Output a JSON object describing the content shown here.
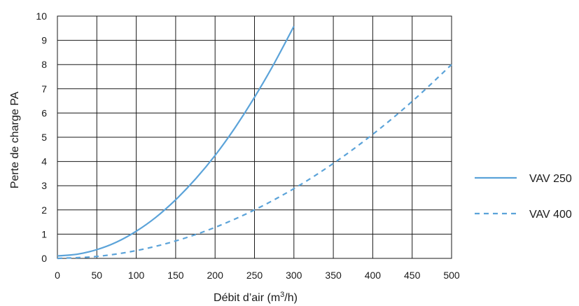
{
  "chart_data": {
    "type": "line",
    "xlabel_prefix": "Débit d’air (m",
    "xlabel_sup": "3",
    "xlabel_suffix": "/h)",
    "ylabel": "Perte de charge PA",
    "xlim": [
      0,
      500
    ],
    "ylim": [
      0,
      10
    ],
    "x_ticks": [
      "0",
      "50",
      "100",
      "150",
      "200",
      "250",
      "300",
      "350",
      "400",
      "450",
      "500"
    ],
    "y_ticks": [
      "0",
      "1",
      "2",
      "3",
      "4",
      "5",
      "6",
      "7",
      "8",
      "9",
      "10"
    ],
    "grid": true,
    "legend_position": "right",
    "series": [
      {
        "name": "VAV 250",
        "style": "solid",
        "color": "#5ba3d9",
        "x": [
          0,
          25,
          50,
          75,
          100,
          125,
          150,
          175,
          200,
          225,
          250,
          275,
          300
        ],
        "y": [
          0.1,
          0.17,
          0.36,
          0.67,
          1.12,
          1.7,
          2.42,
          3.27,
          4.25,
          5.38,
          6.65,
          8.05,
          9.58
        ]
      },
      {
        "name": "VAV 400",
        "style": "dashed",
        "color": "#5ba3d9",
        "x": [
          0,
          50,
          100,
          150,
          200,
          250,
          300,
          350,
          400,
          450,
          500
        ],
        "y": [
          0.0,
          0.08,
          0.32,
          0.72,
          1.28,
          2.0,
          2.88,
          3.92,
          5.12,
          6.48,
          8.0
        ]
      }
    ]
  }
}
